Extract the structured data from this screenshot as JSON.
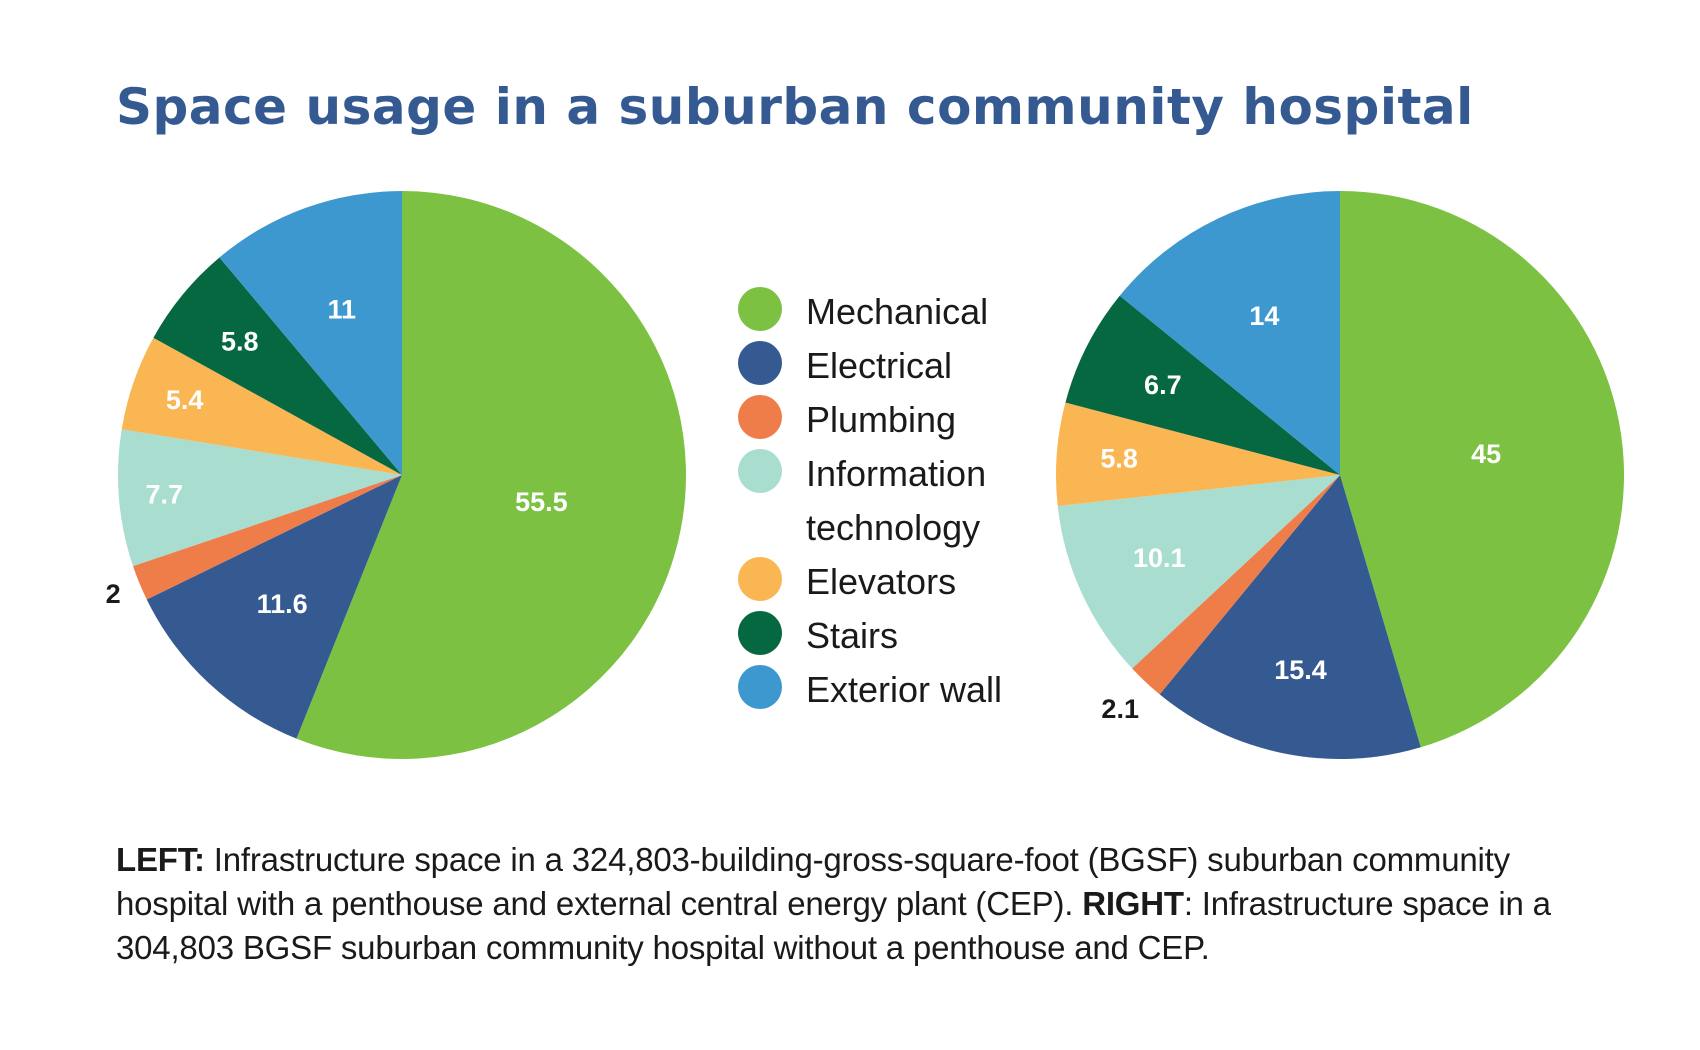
{
  "title": "Space usage in a suburban community hospital",
  "legend": [
    {
      "label": "Mechanical",
      "color": "#7cc142"
    },
    {
      "label": "Electrical",
      "color": "#355a92"
    },
    {
      "label": "Plumbing",
      "color": "#ef7d4a"
    },
    {
      "label": "Information technology",
      "color": "#a8ddd0"
    },
    {
      "label": "Elevators",
      "color": "#fbb654"
    },
    {
      "label": "Stairs",
      "color": "#056840"
    },
    {
      "label": "Exterior wall",
      "color": "#3d98cf"
    }
  ],
  "chart_data": [
    {
      "type": "pie",
      "name": "left",
      "categories": [
        "Mechanical",
        "Electrical",
        "Plumbing",
        "Information technology",
        "Elevators",
        "Stairs",
        "Exterior wall"
      ],
      "values": [
        55.5,
        11.6,
        2,
        7.7,
        5.4,
        5.8,
        11
      ],
      "labels": [
        "55.5",
        "11.6",
        "2",
        "7.7",
        "5.4",
        "5.8",
        "11"
      ],
      "colors": [
        "#7cc142",
        "#355a92",
        "#ef7d4a",
        "#a8ddd0",
        "#fbb654",
        "#056840",
        "#3d98cf"
      ],
      "start_angle": "12 o'clock",
      "direction": "clockwise"
    },
    {
      "type": "pie",
      "name": "right",
      "categories": [
        "Mechanical",
        "Electrical",
        "Plumbing",
        "Information technology",
        "Elevators",
        "Stairs",
        "Exterior wall"
      ],
      "values": [
        45,
        15.4,
        2.1,
        10.1,
        5.8,
        6.7,
        14
      ],
      "labels": [
        "45",
        "15.4",
        "2.1",
        "10.1",
        "5.8",
        "6.7",
        "14"
      ],
      "colors": [
        "#7cc142",
        "#355a92",
        "#ef7d4a",
        "#a8ddd0",
        "#fbb654",
        "#056840",
        "#3d98cf"
      ],
      "start_angle": "12 o'clock",
      "direction": "clockwise"
    }
  ],
  "caption": {
    "left_label": "LEFT:",
    "left_text": " Infrastructure space in a 324,803-building-gross-square-foot (BGSF) suburban community hospital with a penthouse and external central energy plant (CEP). ",
    "right_label": "RIGHT",
    "right_text": ": Infrastructure space in a 304,803 BGSF suburban community hospital without a penthouse and CEP."
  }
}
